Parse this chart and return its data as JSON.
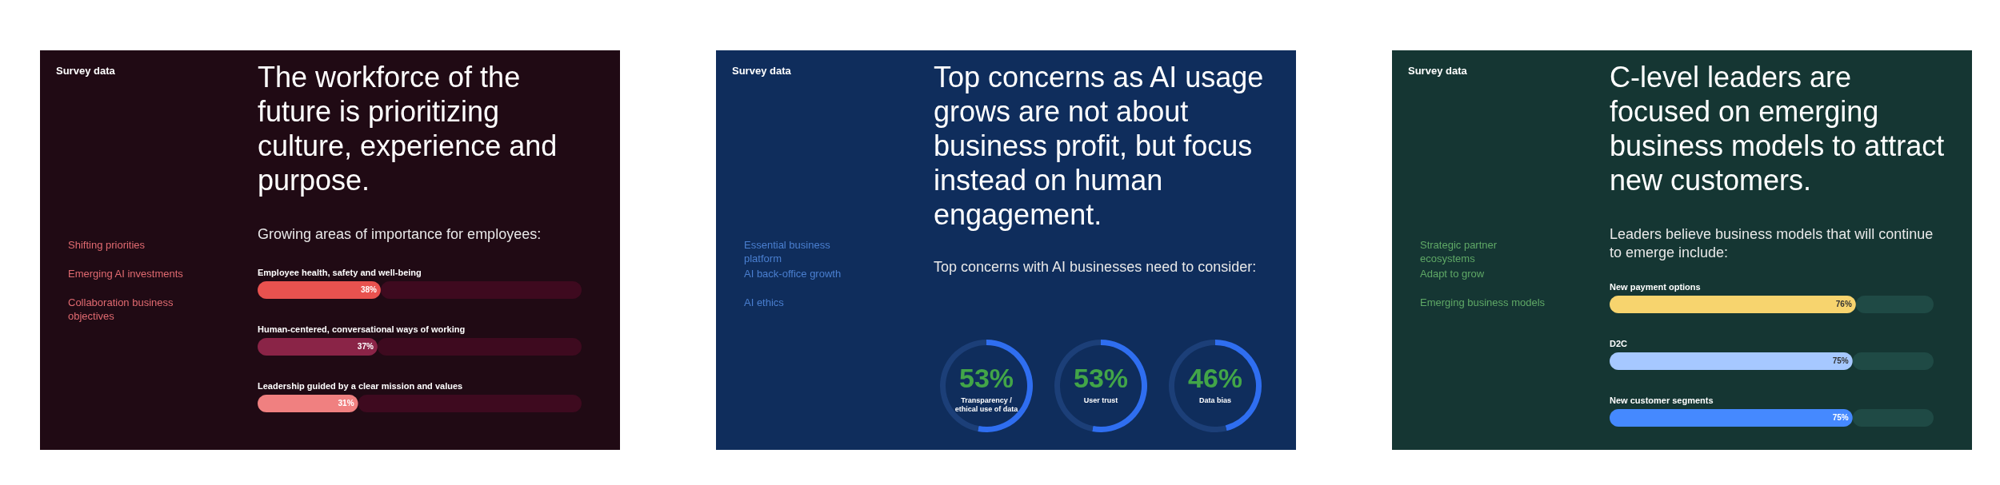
{
  "chart_data": [
    {
      "type": "bar",
      "orientation": "horizontal",
      "title": "The workforce of the future is prioritizing culture, experience and purpose.",
      "subtitle": "Growing areas of importance for employees:",
      "annotations": [
        "Survey data",
        "Shifting priorities",
        "Emerging AI investments",
        "Collaboration business objectives"
      ],
      "categories": [
        "Employee health, safety and well-being",
        "Human-centered, conversational ways of working",
        "Leadership guided by a clear mission and values"
      ],
      "stacked": true,
      "series": [
        {
          "values": [
            38,
            37,
            31
          ],
          "colors": [
            "#e8524f",
            "#8a2447",
            "#f08080"
          ],
          "value_labels": [
            "38%",
            "37%",
            "31%"
          ]
        },
        {
          "values": [
            62,
            63,
            69
          ],
          "color": "#3e0a1f"
        }
      ],
      "xlim": [
        0,
        100
      ]
    },
    {
      "type": "other",
      "title": "Top concerns as AI usage grows are not about business profit, but focus instead on human engagement.",
      "subtitle": "Top concerns with AI businesses need to consider:",
      "annotations": [
        "Survey data",
        "Essential business platform",
        "AI back-office growth",
        "AI ethics"
      ]
    },
    {
      "type": "donut",
      "categories": [
        "Transparency / ethical use of data",
        null
      ],
      "values": [
        53,
        47
      ],
      "colors": [
        "#2f6ef0",
        "#1c3f78"
      ],
      "value_labels": [
        "53%",
        null
      ]
    },
    {
      "type": "donut",
      "categories": [
        "User trust",
        null
      ],
      "values": [
        53,
        47
      ],
      "colors": [
        "#2f6ef0",
        "#1c3f78"
      ],
      "value_labels": [
        "53%",
        null
      ]
    },
    {
      "type": "donut",
      "categories": [
        "Data bias",
        null
      ],
      "values": [
        46,
        54
      ],
      "colors": [
        "#2f6ef0",
        "#1c3f78"
      ],
      "value_labels": [
        "46%",
        null
      ]
    },
    {
      "type": "bar",
      "orientation": "horizontal",
      "title": "C-level leaders are focused on emerging business models to attract new customers.",
      "subtitle": "Leaders believe business models that will continue to emerge include:",
      "annotations": [
        "Survey data",
        "Strategic partner ecosystems",
        "Adapt to grow",
        "Emerging business models"
      ],
      "categories": [
        "New payment options",
        "D2C",
        "New customer segments"
      ],
      "stacked": true,
      "series": [
        {
          "values": [
            76,
            75,
            75
          ],
          "colors": [
            "#f7d46e",
            "#a6c8ff",
            "#4589ff"
          ],
          "value_labels": [
            "76%",
            "75%",
            "75%"
          ]
        },
        {
          "values": [
            24,
            25,
            25
          ],
          "color": "#1f4a45"
        }
      ],
      "xlim": [
        0,
        100
      ]
    }
  ]
}
